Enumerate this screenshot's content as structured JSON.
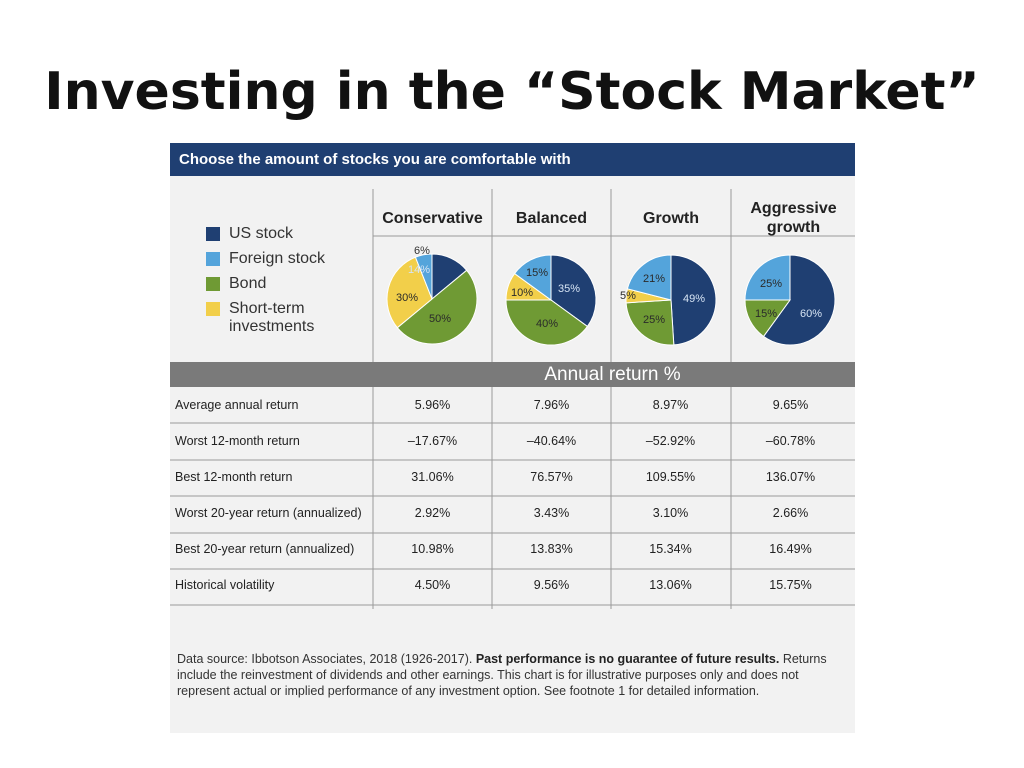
{
  "slide": {
    "title": "Investing in the “Stock Market”"
  },
  "header": {
    "text": "Choose the amount of stocks you are comfortable with"
  },
  "legend": [
    {
      "label": "US stock",
      "color": "#1f3f72"
    },
    {
      "label": "Foreign stock",
      "color": "#54a4db"
    },
    {
      "label": "Bond",
      "color": "#6f9a34"
    },
    {
      "label": "Short-term investments",
      "color": "#f2cf4a"
    }
  ],
  "columns": [
    {
      "name": "Conservative"
    },
    {
      "name": "Balanced"
    },
    {
      "name": "Growth"
    },
    {
      "name": "Aggressive growth"
    }
  ],
  "band_label": "Annual return %",
  "rows": [
    {
      "label": "Average annual return",
      "values": [
        "5.96%",
        "7.96%",
        "8.97%",
        "9.65%"
      ]
    },
    {
      "label": "Worst 12-month return",
      "values": [
        "–17.67%",
        "–40.64%",
        "–52.92%",
        "–60.78%"
      ]
    },
    {
      "label": "Best 12-month return",
      "values": [
        "31.06%",
        "76.57%",
        "109.55%",
        "136.07%"
      ]
    },
    {
      "label": "Worst 20-year return (annualized)",
      "values": [
        "2.92%",
        "3.43%",
        "3.10%",
        "2.66%"
      ]
    },
    {
      "label": "Best 20-year return (annualized)",
      "values": [
        "10.98%",
        "13.83%",
        "15.34%",
        "16.49%"
      ]
    },
    {
      "label": "Historical volatility",
      "values": [
        "4.50%",
        "9.56%",
        "13.06%",
        "15.75%"
      ]
    }
  ],
  "footnote": {
    "part1": "Data source: Ibbotson Associates, 2018 (1926-2017). ",
    "bold": "Past performance is no guarantee of future results.",
    "part2": " Returns include the reinvestment of dividends and other earnings. This chart is for illustrative purposes only and does not represent actual or implied performance of any investment option. See footnote 1 for detailed information."
  },
  "chart_data": [
    {
      "type": "pie",
      "title": "Conservative",
      "slices": [
        {
          "name": "US stock",
          "value": 14,
          "label": "14%"
        },
        {
          "name": "Bond",
          "value": 50,
          "label": "50%"
        },
        {
          "name": "Short-term investments",
          "value": 30,
          "label": "30%"
        },
        {
          "name": "Foreign stock",
          "value": 6,
          "label": "6%"
        }
      ]
    },
    {
      "type": "pie",
      "title": "Balanced",
      "slices": [
        {
          "name": "US stock",
          "value": 35,
          "label": "35%"
        },
        {
          "name": "Bond",
          "value": 40,
          "label": "40%"
        },
        {
          "name": "Short-term investments",
          "value": 10,
          "label": "10%"
        },
        {
          "name": "Foreign stock",
          "value": 15,
          "label": "15%"
        }
      ]
    },
    {
      "type": "pie",
      "title": "Growth",
      "slices": [
        {
          "name": "US stock",
          "value": 49,
          "label": "49%"
        },
        {
          "name": "Bond",
          "value": 25,
          "label": "25%"
        },
        {
          "name": "Short-term investments",
          "value": 5,
          "label": "5%"
        },
        {
          "name": "Foreign stock",
          "value": 21,
          "label": "21%"
        }
      ]
    },
    {
      "type": "pie",
      "title": "Aggressive growth",
      "slices": [
        {
          "name": "US stock",
          "value": 60,
          "label": "60%"
        },
        {
          "name": "Bond",
          "value": 15,
          "label": "15%"
        },
        {
          "name": "Foreign stock",
          "value": 25,
          "label": "25%"
        }
      ]
    }
  ]
}
